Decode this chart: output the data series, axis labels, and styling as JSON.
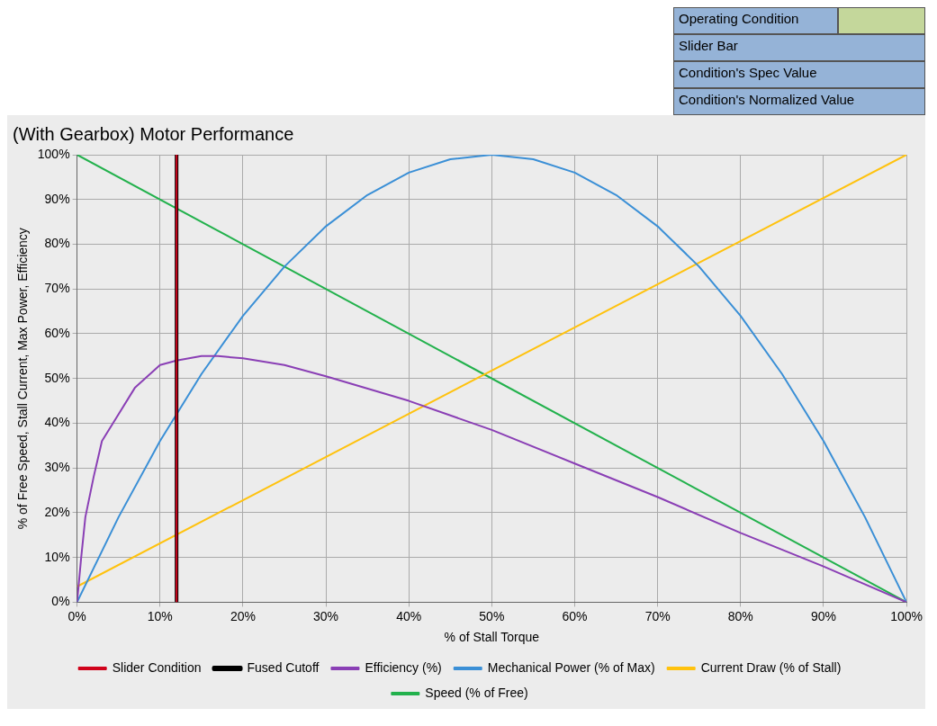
{
  "chart_data": {
    "type": "line",
    "title": "(With Gearbox) Motor Performance",
    "xlabel": "% of Stall Torque",
    "ylabel": "% of Free Speed, Stall Current, Max Power, Efficiency",
    "xlim": [
      0,
      100
    ],
    "ylim": [
      0,
      100
    ],
    "xticks": [
      {
        "value": 0,
        "label": "0%"
      },
      {
        "value": 10,
        "label": "10%"
      },
      {
        "value": 20,
        "label": "20%"
      },
      {
        "value": 30,
        "label": "30%"
      },
      {
        "value": 40,
        "label": "40%"
      },
      {
        "value": 50,
        "label": "50%"
      },
      {
        "value": 60,
        "label": "60%"
      },
      {
        "value": 70,
        "label": "70%"
      },
      {
        "value": 80,
        "label": "80%"
      },
      {
        "value": 90,
        "label": "90%"
      },
      {
        "value": 100,
        "label": "100%"
      }
    ],
    "yticks": [
      {
        "value": 0,
        "label": "0%"
      },
      {
        "value": 10,
        "label": "10%"
      },
      {
        "value": 20,
        "label": "20%"
      },
      {
        "value": 30,
        "label": "30%"
      },
      {
        "value": 40,
        "label": "40%"
      },
      {
        "value": 50,
        "label": "50%"
      },
      {
        "value": 60,
        "label": "60%"
      },
      {
        "value": 70,
        "label": "70%"
      },
      {
        "value": 80,
        "label": "80%"
      },
      {
        "value": 90,
        "label": "90%"
      },
      {
        "value": 100,
        "label": "100%"
      }
    ],
    "grid": true,
    "legend": "bottom",
    "marker": "none",
    "line_style": "solid",
    "annotations": [
      "Operating Condition",
      "Slider Bar",
      "Condition's Spec Value",
      "Condition's Normalized Value"
    ],
    "series": [
      {
        "name": "Speed (% of Free)",
        "color": "#22b14c",
        "x": [
          0,
          100
        ],
        "values": [
          100,
          0
        ]
      },
      {
        "name": "Current Draw (% of Stall)",
        "color": "#ffc20e",
        "x": [
          0,
          100
        ],
        "values": [
          3.5,
          100
        ]
      },
      {
        "name": "Mechanical Power (% of Max)",
        "color": "#3a8fd6",
        "x": [
          0,
          5,
          10,
          15,
          20,
          25,
          30,
          35,
          40,
          45,
          50,
          55,
          60,
          65,
          70,
          75,
          80,
          85,
          90,
          95,
          100
        ],
        "values": [
          0,
          19,
          36,
          51,
          64,
          75,
          84,
          91,
          96,
          99,
          100,
          99,
          96,
          91,
          84,
          75,
          64,
          51,
          36,
          19,
          0
        ]
      },
      {
        "name": "Efficiency (%)",
        "color": "#8a3fb5",
        "x": [
          0,
          0.5,
          1,
          2,
          3,
          5,
          7,
          10,
          12,
          15,
          17,
          20,
          25,
          30,
          40,
          50,
          60,
          70,
          80,
          90,
          100
        ],
        "values": [
          0,
          10,
          19,
          28,
          36,
          42,
          48,
          53,
          54,
          55,
          55,
          54.5,
          53,
          50.5,
          45,
          38.5,
          31,
          23.5,
          15.5,
          8,
          0
        ]
      },
      {
        "name": "Fused Cutoff",
        "color": "#000000",
        "x": [
          12,
          12
        ],
        "values": [
          0,
          100
        ]
      },
      {
        "name": "Slider Condition",
        "color": "#d0021b",
        "x": [
          12,
          12
        ],
        "values": [
          0,
          100
        ]
      }
    ]
  }
}
